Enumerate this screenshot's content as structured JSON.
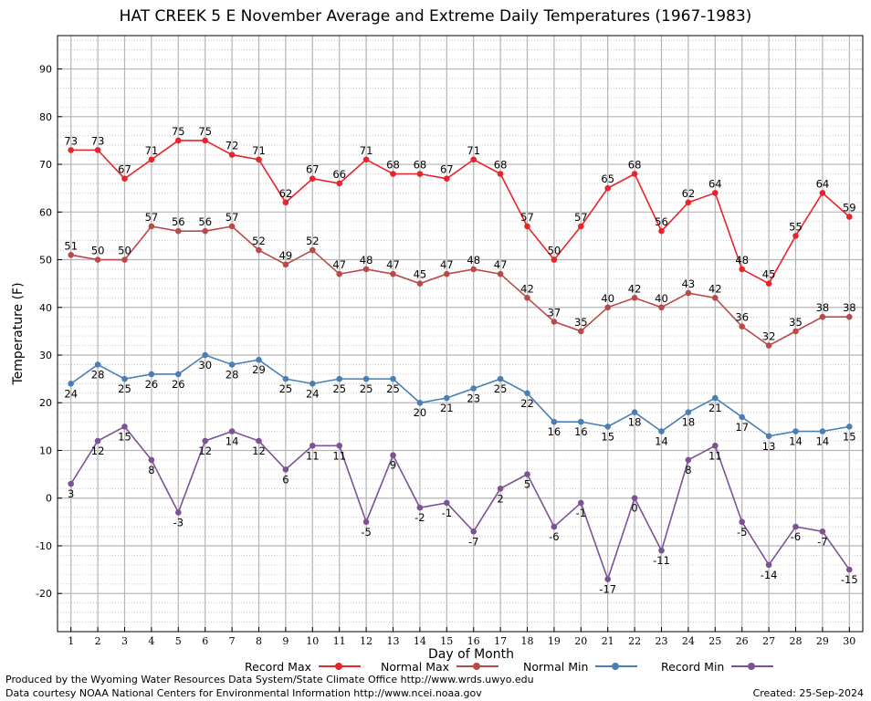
{
  "title": "HAT CREEK 5 E November Average and Extreme Daily Temperatures (1967-1983)",
  "footer": {
    "line1": "Produced by the Wyoming Water Resources Data System/State Climate Office http://www.wrds.uwyo.edu",
    "line2": "Data courtesy NOAA National Centers for Environmental Information http://www.ncei.noaa.gov",
    "created": "Created:  25-Sep-2024"
  },
  "legend": [
    {
      "name": "Record Max",
      "color": "#e8242b"
    },
    {
      "name": "Normal Max",
      "color": "#b94a4a"
    },
    {
      "name": "Normal Min",
      "color": "#4a7fb5"
    },
    {
      "name": "Record Min",
      "color": "#7c5295"
    }
  ],
  "chart_data": {
    "type": "line",
    "title": "HAT CREEK 5 E November Average and Extreme Daily Temperatures (1967-1983)",
    "xlabel": "Day of Month",
    "ylabel": "Temperature (F)",
    "x": [
      1,
      2,
      3,
      4,
      5,
      6,
      7,
      8,
      9,
      10,
      11,
      12,
      13,
      14,
      15,
      16,
      17,
      18,
      19,
      20,
      21,
      22,
      23,
      24,
      25,
      26,
      27,
      28,
      29,
      30
    ],
    "xlim": [
      0.5,
      30.5
    ],
    "ylim": [
      -28,
      97
    ],
    "yticks": [
      -20,
      -10,
      0,
      10,
      20,
      30,
      40,
      50,
      60,
      70,
      80,
      90
    ],
    "grid": true,
    "legend_position": "bottom",
    "series": [
      {
        "name": "Record Max",
        "color": "#e8242b",
        "values": [
          73,
          73,
          67,
          71,
          75,
          75,
          72,
          71,
          62,
          67,
          66,
          71,
          68,
          68,
          67,
          71,
          68,
          57,
          50,
          57,
          65,
          68,
          56,
          62,
          64,
          48,
          45,
          55,
          64,
          59
        ]
      },
      {
        "name": "Normal Max",
        "color": "#b94a4a",
        "values": [
          51,
          50,
          50,
          57,
          56,
          56,
          57,
          52,
          49,
          52,
          47,
          48,
          47,
          45,
          47,
          48,
          47,
          42,
          37,
          35,
          40,
          42,
          40,
          43,
          42,
          36,
          32,
          35,
          38,
          38
        ]
      },
      {
        "name": "Normal Min",
        "color": "#4a7fb5",
        "values": [
          24,
          28,
          25,
          26,
          26,
          30,
          28,
          29,
          25,
          24,
          25,
          25,
          25,
          20,
          21,
          23,
          25,
          22,
          16,
          16,
          15,
          18,
          14,
          18,
          21,
          17,
          13,
          14,
          14,
          15
        ]
      },
      {
        "name": "Record Min",
        "color": "#7c5295",
        "values": [
          3,
          12,
          15,
          8,
          -3,
          12,
          14,
          12,
          6,
          11,
          11,
          -5,
          9,
          -2,
          -1,
          -7,
          2,
          5,
          -6,
          -1,
          -17,
          0,
          -11,
          8,
          11,
          -5,
          -14,
          -6,
          -7,
          -15
        ]
      }
    ]
  }
}
